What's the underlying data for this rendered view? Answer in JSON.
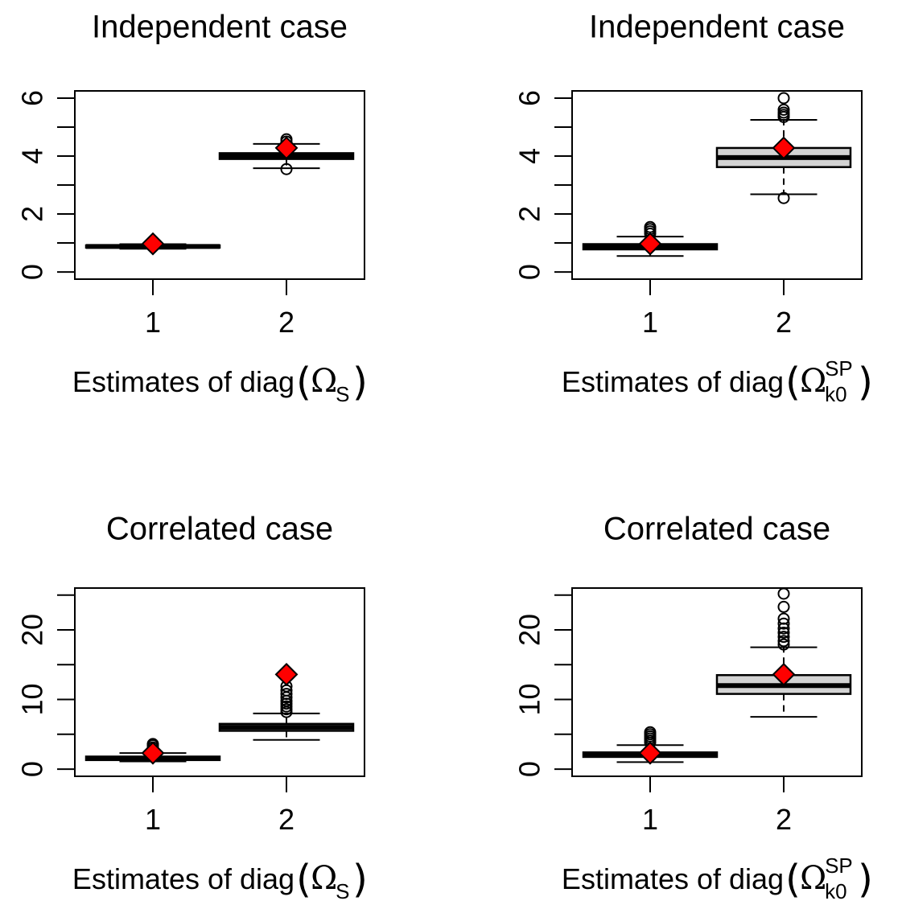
{
  "chart_data": [
    {
      "type": "box",
      "title": "Independent case",
      "xlabel": {
        "prefix": "Estimates of diag",
        "symbol": "Ω",
        "sub": "S",
        "sup": ""
      },
      "categories": [
        "1",
        "2"
      ],
      "ylim": [
        0,
        6.2
      ],
      "yticks": [
        0,
        2,
        4,
        6
      ],
      "yminor": [
        1,
        3,
        5
      ],
      "boxes": [
        {
          "category": "1",
          "q1": 0.84,
          "median": 0.88,
          "q3": 0.92,
          "whisker_low": 0.8,
          "whisker_high": 0.96,
          "outliers": [],
          "mean": 0.97
        },
        {
          "category": "2",
          "q1": 3.9,
          "median": 4.0,
          "q3": 4.1,
          "whisker_low": 3.58,
          "whisker_high": 4.42,
          "outliers": [
            3.55,
            4.5,
            4.58
          ],
          "mean": 4.28
        }
      ]
    },
    {
      "type": "box",
      "title": "Independent case",
      "xlabel": {
        "prefix": "Estimates of diag",
        "symbol": "Ω",
        "sub": "k0",
        "sup": "SP"
      },
      "categories": [
        "1",
        "2"
      ],
      "ylim": [
        0,
        6.2
      ],
      "yticks": [
        0,
        2,
        4,
        6
      ],
      "yminor": [
        1,
        3,
        5
      ],
      "boxes": [
        {
          "category": "1",
          "q1": 0.78,
          "median": 0.87,
          "q3": 0.96,
          "whisker_low": 0.55,
          "whisker_high": 1.22,
          "outliers": [
            1.32,
            1.4,
            1.48,
            1.55
          ],
          "mean": 0.97
        },
        {
          "category": "2",
          "q1": 3.62,
          "median": 3.95,
          "q3": 4.28,
          "whisker_low": 2.68,
          "whisker_high": 5.25,
          "outliers": [
            2.55,
            5.35,
            5.42,
            5.5,
            5.6,
            6.0
          ],
          "mean": 4.28
        }
      ]
    },
    {
      "type": "box",
      "title": "Correlated case",
      "xlabel": {
        "prefix": "Estimates of diag",
        "symbol": "Ω",
        "sub": "S",
        "sup": ""
      },
      "categories": [
        "1",
        "2"
      ],
      "ylim": [
        0,
        25.8
      ],
      "yticks": [
        0,
        10,
        20
      ],
      "yminor": [
        5,
        15,
        25
      ],
      "boxes": [
        {
          "category": "1",
          "q1": 1.3,
          "median": 1.55,
          "q3": 1.8,
          "whisker_low": 1.1,
          "whisker_high": 2.3,
          "outliers": [
            2.5,
            2.8,
            3.1,
            3.4,
            3.6
          ],
          "mean": 2.3
        },
        {
          "category": "2",
          "q1": 5.5,
          "median": 6.0,
          "q3": 6.5,
          "whisker_low": 4.2,
          "whisker_high": 8.0,
          "outliers": [
            8.2,
            8.6,
            9.0,
            9.4,
            9.8,
            10.3,
            10.8,
            11.3,
            11.9
          ],
          "mean": 13.6
        }
      ]
    },
    {
      "type": "box",
      "title": "Correlated case",
      "xlabel": {
        "prefix": "Estimates of diag",
        "symbol": "Ω",
        "sub": "k0",
        "sup": "SP"
      },
      "categories": [
        "1",
        "2"
      ],
      "ylim": [
        0,
        25.8
      ],
      "yticks": [
        0,
        10,
        20
      ],
      "yminor": [
        5,
        15,
        25
      ],
      "boxes": [
        {
          "category": "1",
          "q1": 1.75,
          "median": 2.05,
          "q3": 2.4,
          "whisker_low": 1.0,
          "whisker_high": 3.45,
          "outliers": [
            3.8,
            4.1,
            4.4,
            4.7,
            5.0,
            5.3
          ],
          "mean": 2.3
        },
        {
          "category": "2",
          "q1": 10.8,
          "median": 12.0,
          "q3": 13.5,
          "whisker_low": 7.5,
          "whisker_high": 17.5,
          "outliers": [
            17.9,
            18.4,
            19.0,
            19.6,
            20.2,
            20.9,
            21.6,
            23.3,
            25.2
          ],
          "mean": 13.6
        }
      ]
    }
  ],
  "colors": {
    "box_fill": "#d3d3d3",
    "mean_marker": "#ff0000",
    "ink": "#000000",
    "background": "#ffffff"
  }
}
